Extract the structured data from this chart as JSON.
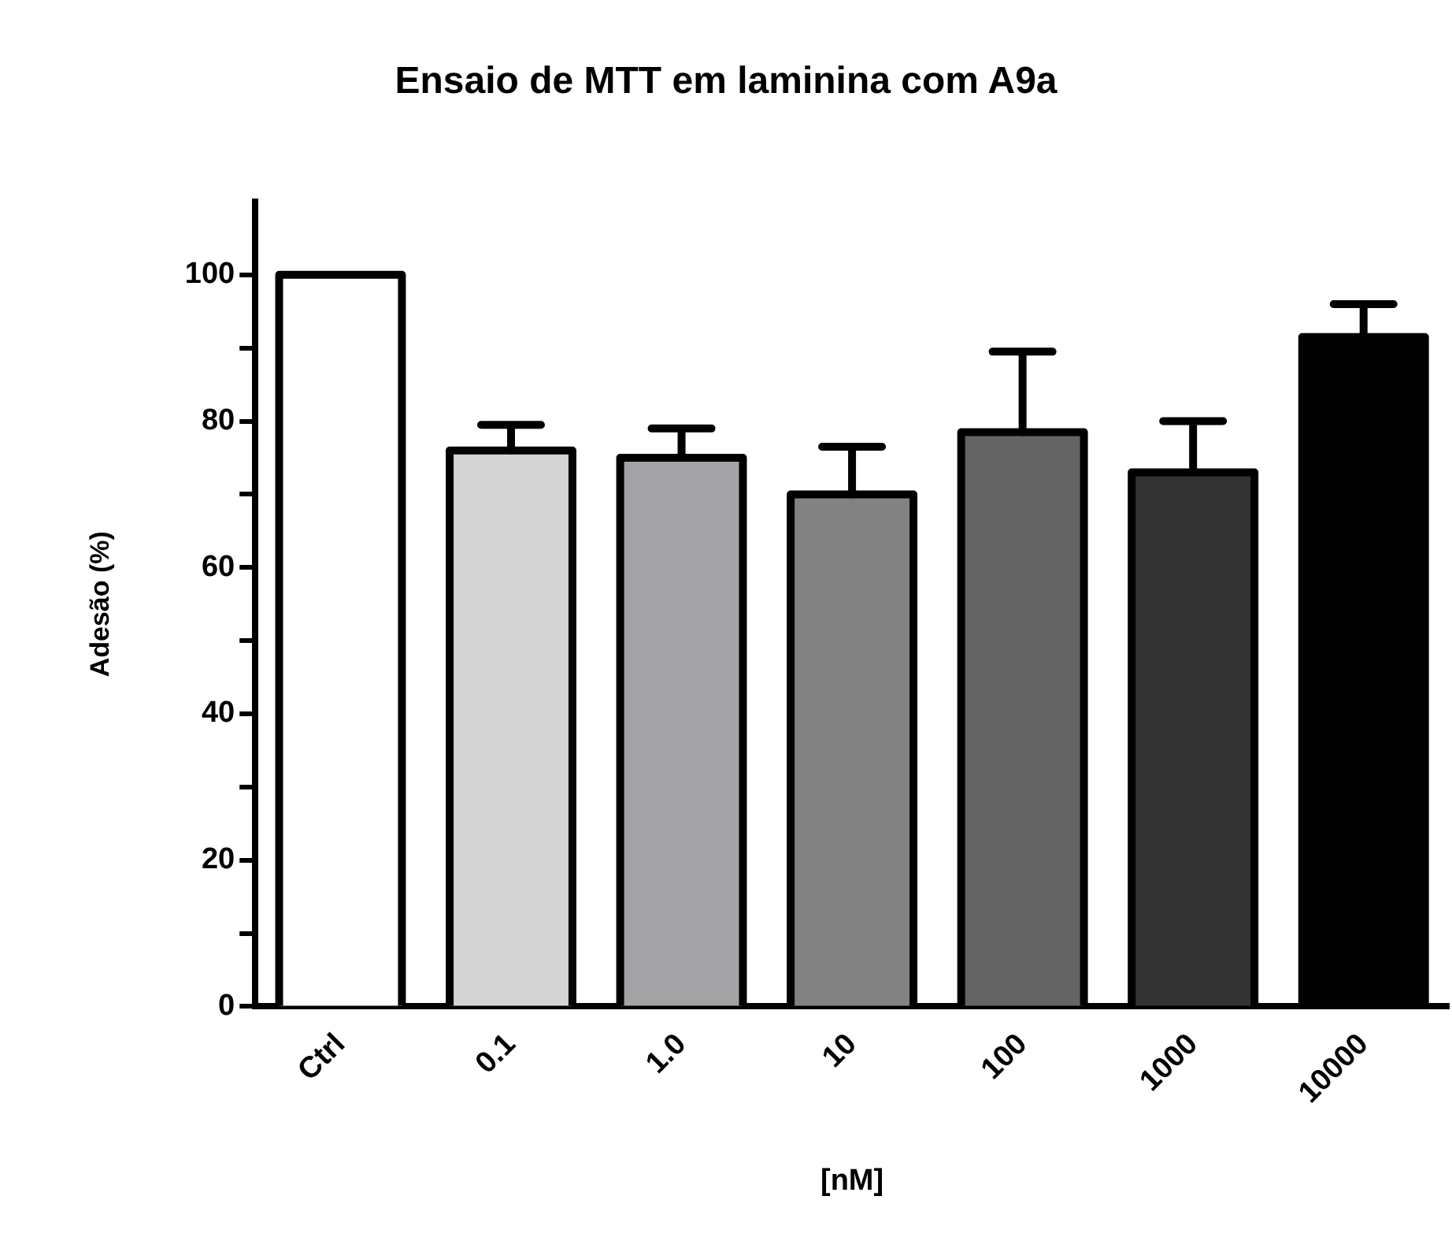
{
  "chart_data": {
    "type": "bar",
    "title": "Ensaio de MTT em laminina com A9a",
    "xlabel": "[nM]",
    "ylabel": "Adesão (%)",
    "categories": [
      "Ctrl",
      "0.1",
      "1.0",
      "10",
      "100",
      "1000",
      "10000"
    ],
    "values": [
      100,
      76,
      75,
      70,
      78.5,
      73,
      91.5
    ],
    "errors": [
      null,
      [
        76,
        79.5
      ],
      [
        75,
        79
      ],
      [
        70,
        76.5
      ],
      [
        78.5,
        89.5
      ],
      [
        73,
        80
      ],
      [
        91.5,
        96
      ]
    ],
    "colors": [
      "#ffffff",
      "#d4d4d4",
      "#a3a3a6",
      "#828282",
      "#646464",
      "#333333",
      "#000000"
    ],
    "ylim": [
      0,
      110
    ],
    "yticks": [
      0,
      {
        "value": 10,
        "label": null
      },
      20,
      {
        "value": 30,
        "label": null
      },
      40,
      {
        "value": 50,
        "label": null
      },
      60,
      {
        "value": 70,
        "label": null
      },
      80,
      {
        "value": 90,
        "label": null
      },
      100
    ],
    "grid": false,
    "legend": false
  }
}
